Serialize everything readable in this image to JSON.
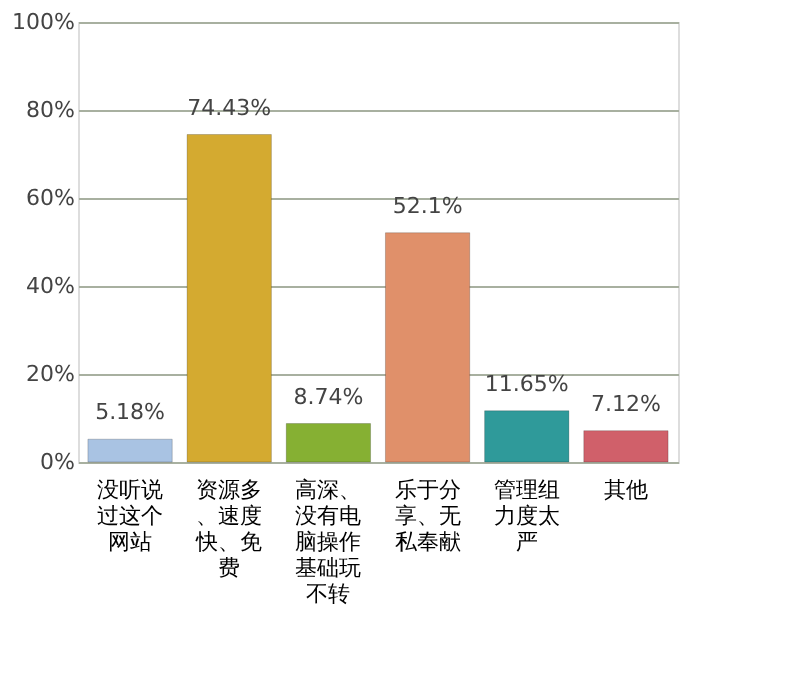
{
  "chart_data": {
    "type": "bar",
    "categories": [
      "没听说过这个网站",
      "资源多、速度快、免费",
      "高深、没有电脑操作基础玩不转",
      "乐于分享、无私奉献",
      "管理组力度太严",
      "其他"
    ],
    "values": [
      5.18,
      74.43,
      8.74,
      52.1,
      11.65,
      7.12
    ],
    "value_labels": [
      "5.18%",
      "74.43%",
      "8.74%",
      "52.1%",
      "11.65%",
      "7.12%"
    ],
    "colors": [
      "#a9c3e3",
      "#d4aa30",
      "#86b033",
      "#e0906a",
      "#2f9a9a",
      "#d0606a"
    ],
    "ylim": [
      0,
      100
    ],
    "yticks": [
      {
        "value": 0,
        "label": "0%"
      },
      {
        "value": 20,
        "label": "20%"
      },
      {
        "value": 40,
        "label": "40%"
      },
      {
        "value": 60,
        "label": "60%"
      },
      {
        "value": 80,
        "label": "80%"
      },
      {
        "value": 100,
        "label": "100%"
      }
    ],
    "grid": "y"
  }
}
